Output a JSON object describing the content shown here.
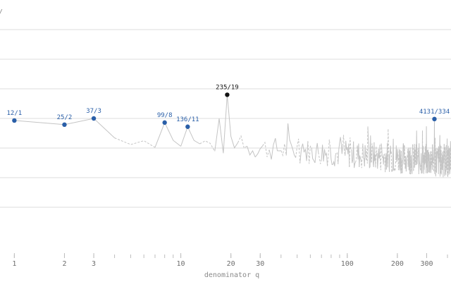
{
  "chart_data": {
    "type": "line",
    "title": "",
    "xlabel": "denominator q",
    "ylabel": "/",
    "x_scale": "log",
    "xlim": [
      0.82,
      420
    ],
    "ylim": [
      0,
      8
    ],
    "x_ticks": [
      1,
      2,
      3,
      10,
      20,
      30,
      100,
      200,
      300
    ],
    "x_tick_labels": [
      "1",
      "2",
      "3",
      "10",
      "20",
      "30",
      "100",
      "200",
      "300"
    ],
    "y_gridlines": [
      1,
      2,
      3,
      4,
      5,
      6,
      7
    ],
    "highlight_color": "#2a5fa8",
    "peak_color": "#111111",
    "trace_color": "#c4c4c4",
    "highlighted_points": [
      {
        "label": "12/1",
        "q": 1,
        "y": 3.93,
        "peak": false
      },
      {
        "label": "25/2",
        "q": 2,
        "y": 3.79,
        "peak": false
      },
      {
        "label": "37/3",
        "q": 3,
        "y": 4.0,
        "peak": false
      },
      {
        "label": "99/8",
        "q": 8,
        "y": 3.86,
        "peak": false
      },
      {
        "label": "136/11",
        "q": 11,
        "y": 3.72,
        "peak": false
      },
      {
        "label": "235/19",
        "q": 19,
        "y": 4.8,
        "peak": true
      },
      {
        "label": "4131/334",
        "q": 334,
        "y": 3.98,
        "peak": false
      }
    ]
  }
}
